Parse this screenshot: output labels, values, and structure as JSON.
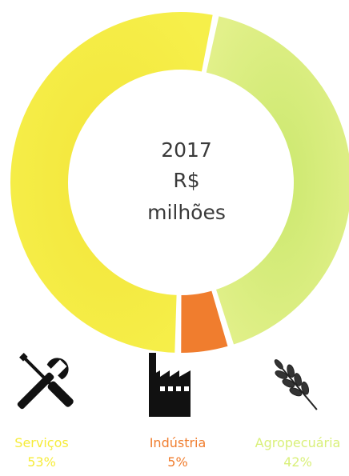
{
  "chart_data": {
    "type": "pie",
    "center_label": [
      "2017",
      "R$",
      "milhões"
    ],
    "slices": [
      {
        "name": "Serviços",
        "value": 53,
        "value_label": "53%",
        "color": "#f6ec3a",
        "icon": "wrench-screwdriver-icon"
      },
      {
        "name": "Indústria",
        "value": 5,
        "value_label": "5%",
        "color": "#f07d2e",
        "icon": "factory-icon"
      },
      {
        "name": "Agropecuária",
        "value": 42,
        "value_label": "42%",
        "color": "#d9f07a",
        "icon": "wheat-icon"
      }
    ],
    "legend": "bottom"
  }
}
